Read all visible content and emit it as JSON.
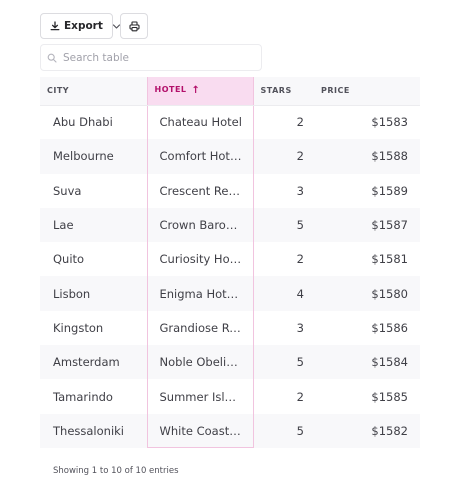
{
  "toolbar": {
    "export_label": "Export",
    "export_icon": "download-icon",
    "dropdown_icon": "chevron-down-icon",
    "secondary_icon": "print-icon"
  },
  "search": {
    "placeholder": "Search table",
    "value": ""
  },
  "table": {
    "columns": [
      {
        "label": "CITY",
        "sorted": false
      },
      {
        "label": "HOTEL",
        "sorted": true,
        "sort_direction": "ascending"
      },
      {
        "label": "STARS",
        "sorted": false
      },
      {
        "label": "PRICE",
        "sorted": false
      }
    ],
    "rows": [
      {
        "city": "Abu Dhabi",
        "hotel": "Chateau Hotel",
        "stars": "2",
        "price": "$1583"
      },
      {
        "city": "Melbourne",
        "hotel": "Comfort Hot…",
        "stars": "2",
        "price": "$1588"
      },
      {
        "city": "Suva",
        "hotel": "Crescent Resort",
        "stars": "3",
        "price": "$1589"
      },
      {
        "city": "Lae",
        "hotel": "Crown Baron …",
        "stars": "5",
        "price": "$1587"
      },
      {
        "city": "Quito",
        "hotel": "Curiosity Hotel",
        "stars": "2",
        "price": "$1581"
      },
      {
        "city": "Lisbon",
        "hotel": "Enigma Hotel…",
        "stars": "4",
        "price": "$1580"
      },
      {
        "city": "Kingston",
        "hotel": "Grandiose Re…",
        "stars": "3",
        "price": "$1586"
      },
      {
        "city": "Amsterdam",
        "hotel": "Noble Obelis…",
        "stars": "5",
        "price": "$1584"
      },
      {
        "city": "Tamarindo",
        "hotel": "Summer Isle …",
        "stars": "2",
        "price": "$1585"
      },
      {
        "city": "Thessaloniki",
        "hotel": "White Coast …",
        "stars": "5",
        "price": "$1582"
      }
    ]
  },
  "footer": {
    "text": "Showing 1 to 10 of 10 entries"
  },
  "colors": {
    "accent": "#b3106b",
    "sorted_header_bg": "#f9dcf0",
    "stripe": "#f8f8fa"
  }
}
